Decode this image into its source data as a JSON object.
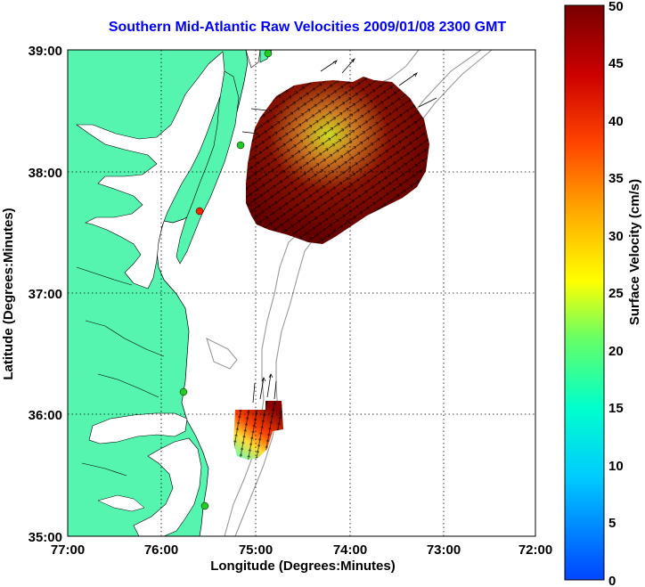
{
  "title": "Southern Mid-Atlantic Raw Velocities 2009/01/08 2300 GMT",
  "x_axis": {
    "label": "Longitude (Degrees:Minutes)",
    "ticks": [
      "77:00",
      "76:00",
      "75:00",
      "74:00",
      "73:00",
      "72:00"
    ]
  },
  "y_axis": {
    "label": "Latitude (Degrees:Minutes)",
    "ticks": [
      "39:00",
      "38:00",
      "37:00",
      "36:00",
      "35:00"
    ]
  },
  "colorbar": {
    "label": "Surface Velocity (cm/s)",
    "ticks": [
      "50",
      "45",
      "40",
      "35",
      "30",
      "25",
      "20",
      "15",
      "10",
      "5",
      "0"
    ],
    "min": 0,
    "max": 50
  },
  "colors": {
    "land": "#55f5b0",
    "water": "#ffffff",
    "title": "#0000ff",
    "bathymetry": "#999999",
    "station_green": "#22cc22",
    "station_red": "#ff2200"
  },
  "map_data": {
    "lon_range": [
      "77:00",
      "72:00"
    ],
    "lat_range": [
      "35:00",
      "39:00"
    ],
    "grid": true,
    "velocity_patches": [
      {
        "name": "northern",
        "dominant_speed_cm_s": 45
      },
      {
        "name": "southern",
        "dominant_speed_cm_s": 45
      }
    ]
  }
}
